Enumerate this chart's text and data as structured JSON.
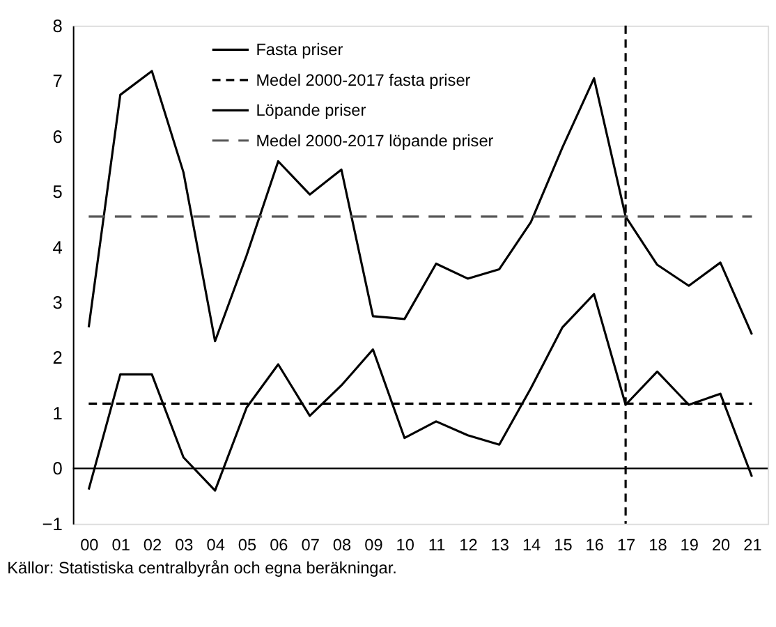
{
  "chart_data": {
    "type": "line",
    "categories": [
      "00",
      "01",
      "02",
      "03",
      "04",
      "05",
      "06",
      "07",
      "08",
      "09",
      "10",
      "11",
      "12",
      "13",
      "14",
      "15",
      "16",
      "17",
      "18",
      "19",
      "20",
      "21"
    ],
    "series": [
      {
        "name": "Fasta priser",
        "color": "#000000",
        "line_style": "solid",
        "values": [
          -0.38,
          1.7,
          1.7,
          0.2,
          -0.4,
          1.1,
          1.88,
          0.95,
          1.5,
          2.15,
          0.55,
          0.85,
          0.6,
          0.43,
          1.45,
          2.55,
          3.15,
          1.15,
          1.75,
          1.15,
          1.35,
          -0.15
        ]
      },
      {
        "name": "Medel 2000-2017 fasta priser",
        "color": "#000000",
        "line_style": "dashed",
        "values": [
          1.17,
          1.17,
          1.17,
          1.17,
          1.17,
          1.17,
          1.17,
          1.17,
          1.17,
          1.17,
          1.17,
          1.17,
          1.17,
          1.17,
          1.17,
          1.17,
          1.17,
          1.17,
          1.17,
          1.17,
          1.17,
          1.17
        ]
      },
      {
        "name": "Löpande priser",
        "color": "#000000",
        "line_style": "solid",
        "values": [
          2.55,
          6.75,
          7.18,
          5.35,
          2.3,
          3.85,
          5.55,
          4.95,
          5.4,
          2.75,
          2.7,
          3.7,
          3.43,
          3.6,
          4.45,
          5.8,
          7.05,
          4.55,
          3.68,
          3.3,
          3.72,
          2.42
        ]
      },
      {
        "name": "Medel 2000-2017 löpande priser",
        "color": "#555555",
        "line_style": "dashed",
        "values": [
          4.55,
          4.55,
          4.55,
          4.55,
          4.55,
          4.55,
          4.55,
          4.55,
          4.55,
          4.55,
          4.55,
          4.55,
          4.55,
          4.55,
          4.55,
          4.55,
          4.55,
          4.55,
          4.55,
          4.55,
          4.55,
          4.55
        ]
      }
    ],
    "ylim": [
      -1,
      8
    ],
    "yticks": [
      -1,
      0,
      1,
      2,
      3,
      4,
      5,
      6,
      7,
      8
    ],
    "ref_lines": [
      {
        "axis": "y",
        "value": 0,
        "line_style": "solid",
        "color": "#000000"
      },
      {
        "axis": "x",
        "value": "17",
        "line_style": "dashed",
        "color": "#000000"
      }
    ],
    "grid": false,
    "legend": "top",
    "marker": "none",
    "annotations": [
      "Källor: Statistiska centralbyrån och egna beräkningar."
    ]
  }
}
